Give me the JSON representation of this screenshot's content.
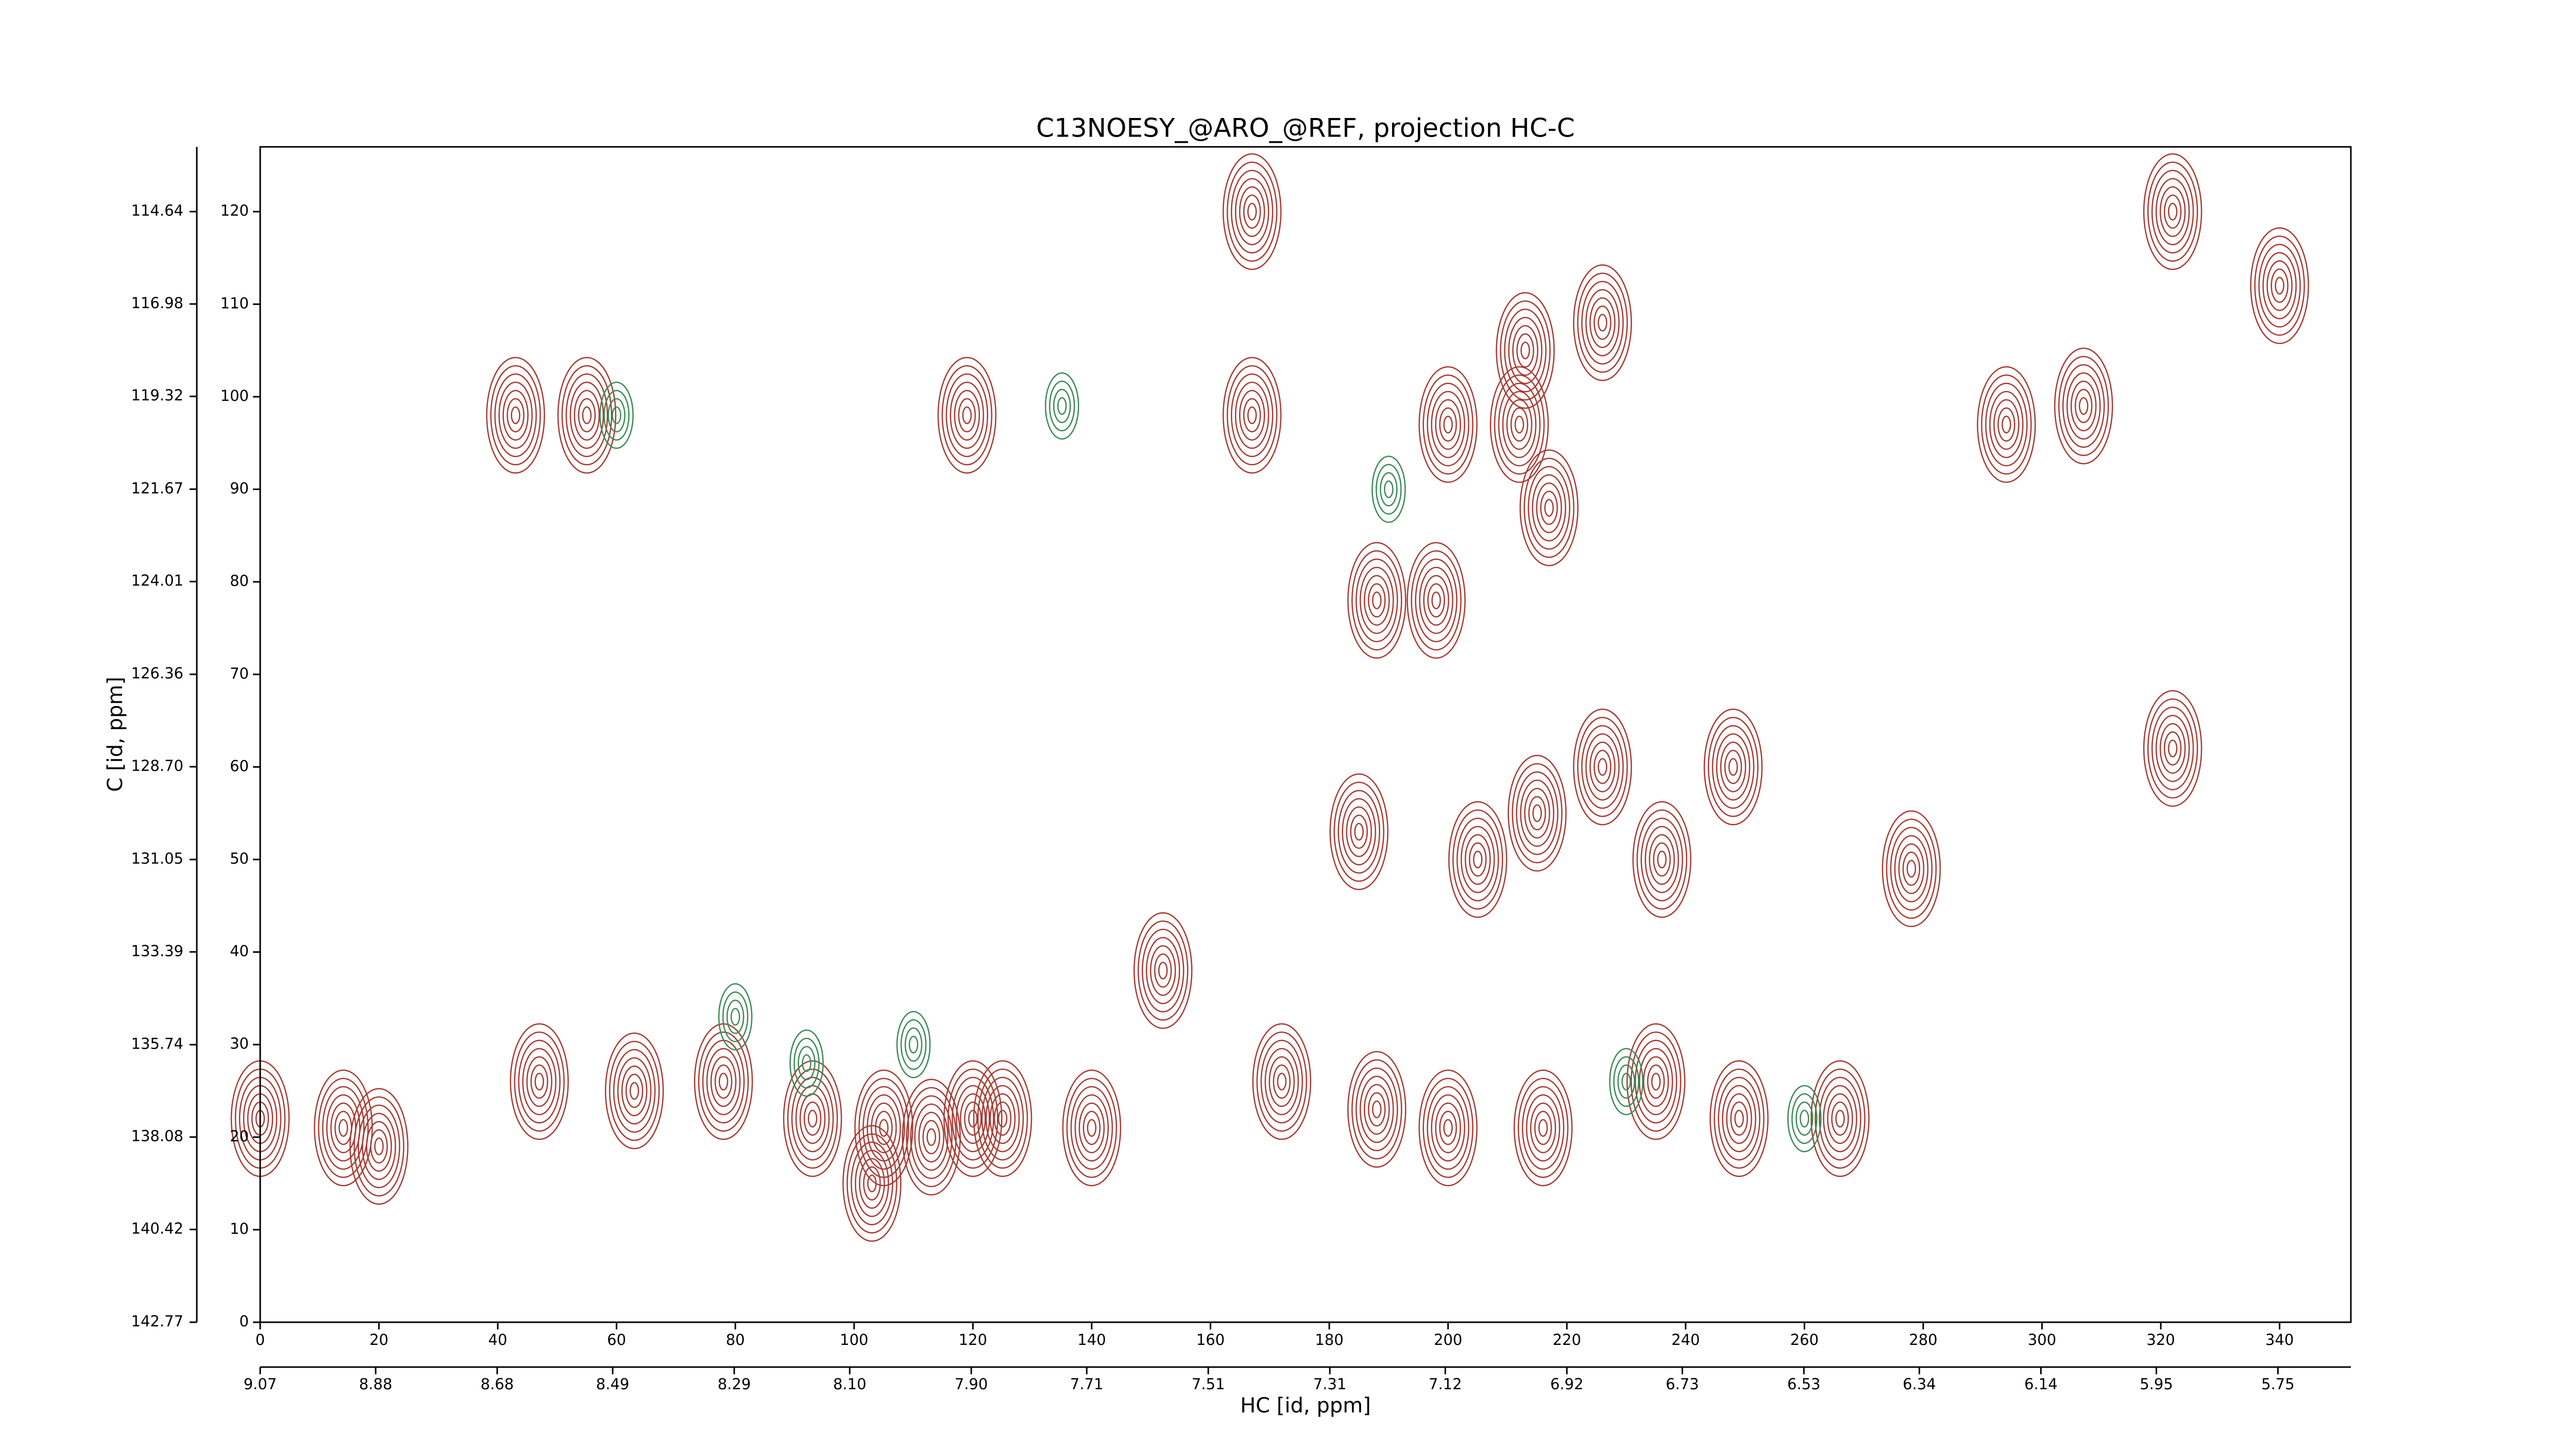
{
  "chart_data": {
    "type": "contour",
    "title": "C13NOESY_@ARO_@REF, projection HC-C",
    "xlabel": "HC [id, ppm]",
    "ylabel": "C [id, ppm]",
    "xlim": [
      0,
      352
    ],
    "xticks": [
      0,
      20,
      40,
      60,
      80,
      100,
      120,
      140,
      160,
      180,
      200,
      220,
      240,
      260,
      280,
      300,
      320,
      340
    ],
    "ylim": [
      0,
      127
    ],
    "yticks": [
      0,
      10,
      20,
      30,
      40,
      50,
      60,
      70,
      80,
      90,
      100,
      110,
      120
    ],
    "x2lim": [
      9.07,
      5.63
    ],
    "x2ticks": [
      9.07,
      8.88,
      8.68,
      8.49,
      8.29,
      {
        "value": 8.1,
        "label": "8.10"
      },
      {
        "value": 7.9,
        "label": "7.90"
      },
      7.71,
      7.51,
      7.31,
      7.12,
      6.92,
      6.73,
      6.53,
      6.34,
      6.14,
      5.95,
      5.75
    ],
    "y2lim": [
      142.77,
      113.0
    ],
    "y2ticks": [
      142.77,
      140.42,
      138.08,
      135.74,
      133.39,
      131.05,
      {
        "value": 128.7,
        "label": "128.70"
      },
      126.36,
      124.01,
      121.67,
      119.32,
      116.98,
      114.64
    ],
    "positive_color": "#a83a32",
    "negative_color": "#3a8a55",
    "positive_peaks": {
      "x": [
        167,
        213,
        226,
        200,
        212,
        217,
        188,
        198,
        205,
        215,
        226,
        236,
        248,
        278,
        152,
        185,
        322,
        340,
        322,
        0,
        14,
        20,
        47,
        63,
        78,
        93,
        105,
        113,
        103,
        120,
        125,
        140,
        172,
        188,
        200,
        216,
        235,
        249,
        266,
        43,
        55,
        119,
        167,
        294,
        307
      ],
      "y": [
        120,
        105,
        108,
        97,
        97,
        88,
        78,
        78,
        50,
        55,
        60,
        50,
        60,
        49,
        38,
        53,
        120,
        112,
        62,
        22,
        21,
        19,
        26,
        25,
        26,
        22,
        21,
        20,
        15,
        22,
        22,
        21,
        26,
        23,
        21,
        21,
        26,
        22,
        22,
        98,
        98,
        98,
        98,
        97,
        99
      ]
    },
    "negative_peaks": {
      "x": [
        60,
        135,
        92,
        110,
        80,
        190,
        230,
        260
      ],
      "y": [
        98,
        99,
        28,
        30,
        33,
        90,
        26,
        22
      ]
    }
  }
}
